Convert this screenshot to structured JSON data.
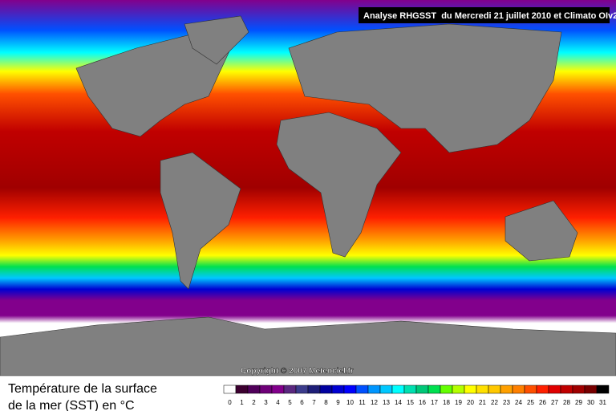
{
  "header": {
    "title": "Analyse RHGSST  du Mercredi 21 juillet 2010 et Climato OIv2"
  },
  "map": {
    "copyright": "Copyright © 2007 Meteociel.fr"
  },
  "legend": {
    "caption_line1": "Température de la surface",
    "caption_line2": "de la mer (SST) en °C",
    "values": [
      0,
      1,
      2,
      3,
      4,
      5,
      6,
      7,
      8,
      9,
      10,
      11,
      12,
      13,
      14,
      15,
      16,
      17,
      18,
      19,
      20,
      21,
      22,
      23,
      24,
      25,
      26,
      27,
      28,
      29,
      30,
      31
    ],
    "colors": [
      "#ffffff",
      "#3c0030",
      "#50005a",
      "#6e0078",
      "#82008c",
      "#5a2880",
      "#3c3c8c",
      "#1e1e78",
      "#0000a0",
      "#0000d2",
      "#0000ff",
      "#0050ff",
      "#0096ff",
      "#00c8ff",
      "#00ffff",
      "#00e0b0",
      "#00c878",
      "#00e050",
      "#64ff00",
      "#b4ff00",
      "#ffff00",
      "#ffe000",
      "#ffc800",
      "#ffa000",
      "#ff8000",
      "#ff5000",
      "#ff2000",
      "#e00000",
      "#c00000",
      "#a00000",
      "#780000",
      "#000000"
    ]
  }
}
